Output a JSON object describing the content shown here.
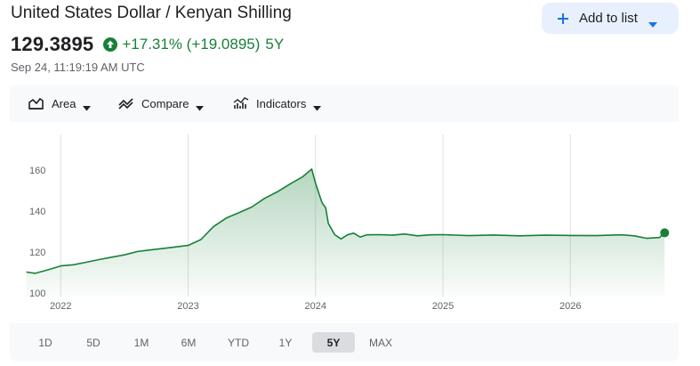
{
  "header": {
    "title": "United States Dollar / Kenyan Shilling",
    "price": "129.3895",
    "change": "+17.31% (+19.0895)",
    "change_period": "5Y",
    "timestamp": "Sep 24, 11:19:19 AM UTC",
    "accent_up": "#188038"
  },
  "add_button": {
    "label": "Add to list",
    "icon": "plus-icon",
    "bg": "#e8f0fe"
  },
  "toolbar": {
    "items": [
      {
        "label": "Area",
        "icon": "area-chart-icon"
      },
      {
        "label": "Compare",
        "icon": "compare-icon"
      },
      {
        "label": "Indicators",
        "icon": "indicators-icon"
      }
    ]
  },
  "ranges": {
    "items": [
      "1D",
      "5D",
      "1M",
      "6M",
      "YTD",
      "1Y",
      "5Y",
      "MAX"
    ],
    "selected": "5Y"
  },
  "chart_data": {
    "type": "area",
    "title": "",
    "xlabel": "",
    "ylabel": "",
    "ylim": [
      100,
      170
    ],
    "yticks": [
      100,
      120,
      140,
      160
    ],
    "x_ticks": [
      "2022",
      "2023",
      "2024",
      "2025",
      "2026"
    ],
    "x_tick_values": [
      2022.0,
      2023.0,
      2024.0,
      2025.0,
      2026.0
    ],
    "xlim": [
      2021.6,
      2026.85
    ],
    "grid": "vertical",
    "line_color": "#188038",
    "fill_color": "#188038",
    "series": [
      {
        "x": [
          2021.73,
          2021.8,
          2021.9,
          2022.0,
          2022.1,
          2022.2,
          2022.3,
          2022.4,
          2022.5,
          2022.6,
          2022.7,
          2022.8,
          2022.9,
          2023.0,
          2023.1,
          2023.2,
          2023.3,
          2023.4,
          2023.5,
          2023.6,
          2023.7,
          2023.8,
          2023.9,
          2023.97,
          2024.0,
          2024.05,
          2024.08,
          2024.1,
          2024.15,
          2024.2,
          2024.25,
          2024.3,
          2024.35,
          2024.4,
          2024.5,
          2024.6,
          2024.7,
          2024.8,
          2024.9,
          2025.0,
          2025.2,
          2025.4,
          2025.6,
          2025.8,
          2026.0,
          2026.2,
          2026.4,
          2026.5,
          2026.6,
          2026.7,
          2026.74
        ],
        "y": [
          110.2,
          109.6,
          111.3,
          113.2,
          113.8,
          115.0,
          116.3,
          117.5,
          118.6,
          120.2,
          121.0,
          121.7,
          122.5,
          123.2,
          126.1,
          132.5,
          136.6,
          139.2,
          142.0,
          146.2,
          149.4,
          153.2,
          156.8,
          160.5,
          153.5,
          144.2,
          141.5,
          134.0,
          128.5,
          126.4,
          128.4,
          129.2,
          127.3,
          128.4,
          128.5,
          128.2,
          128.8,
          127.9,
          128.4,
          128.5,
          128.0,
          128.3,
          127.9,
          128.2,
          128.1,
          128.0,
          128.4,
          127.9,
          126.7,
          127.1,
          129.3895
        ]
      }
    ]
  }
}
